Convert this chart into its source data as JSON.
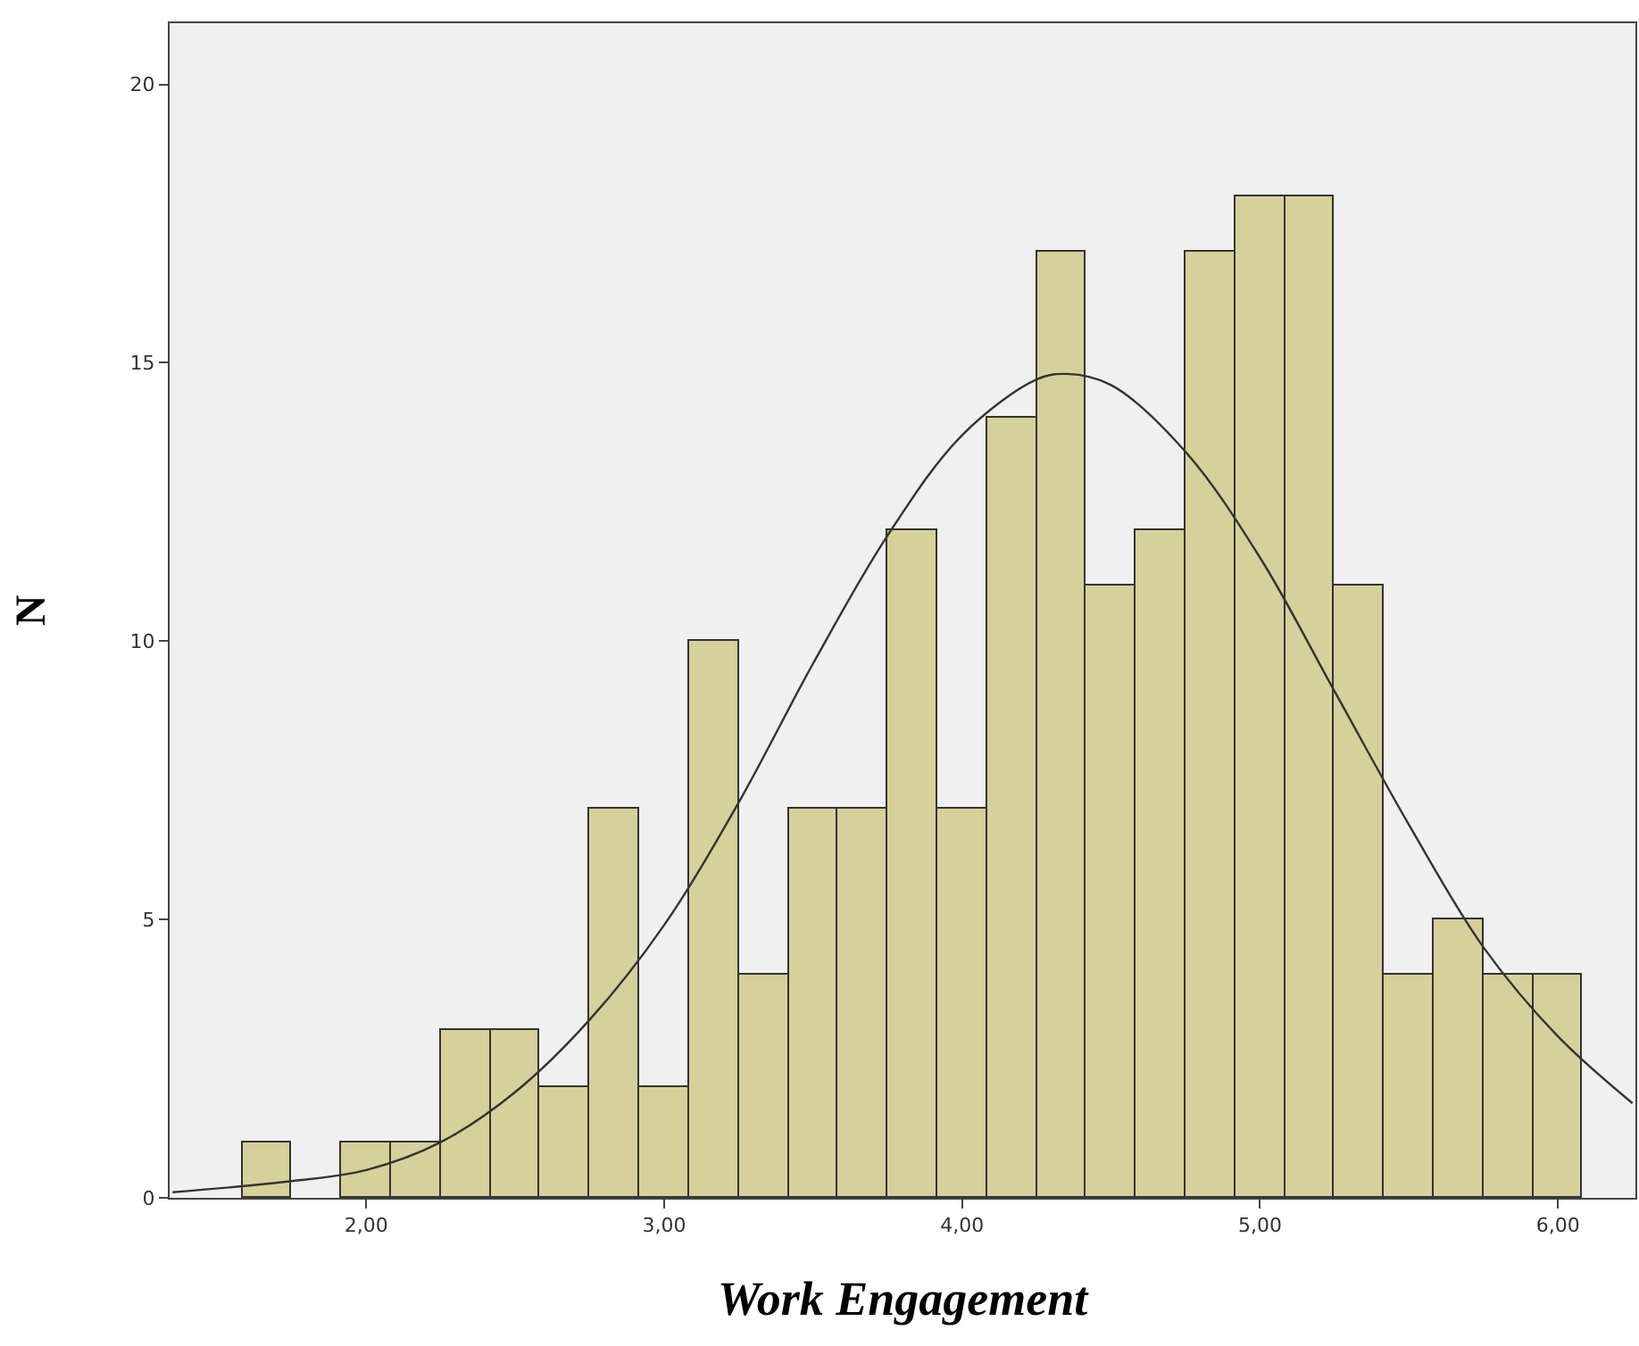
{
  "chart_data": {
    "type": "histogram",
    "xlabel": "Work Engagement",
    "ylabel": "N",
    "bins": [
      1.583,
      1.75,
      1.917,
      2.083,
      2.25,
      2.417,
      2.583,
      2.75,
      2.917,
      3.083,
      3.25,
      3.417,
      3.583,
      3.75,
      3.917,
      4.083,
      4.25,
      4.417,
      4.583,
      4.75,
      4.917,
      5.083,
      5.25,
      5.417,
      5.583,
      5.75,
      5.917,
      6.083
    ],
    "values": [
      1,
      0,
      1,
      1,
      3,
      3,
      2,
      7,
      2,
      10,
      4,
      7,
      7,
      12,
      7,
      14,
      17,
      11,
      12,
      17,
      18,
      18,
      11,
      4,
      5,
      4,
      4
    ],
    "color": "#d6d09a",
    "series": [
      {
        "type": "line",
        "color": "#333333",
        "x": [
          1.35,
          1.75,
          2.0,
          2.25,
          2.5,
          2.75,
          3.0,
          3.25,
          3.5,
          3.75,
          4.0,
          4.25,
          4.35,
          4.5,
          4.75,
          5.0,
          5.25,
          5.5,
          5.75,
          6.0,
          6.25
        ],
        "values": [
          0.1,
          0.3,
          0.5,
          1.0,
          1.9,
          3.2,
          4.9,
          7.1,
          9.6,
          11.9,
          13.7,
          14.7,
          14.8,
          14.6,
          13.4,
          11.5,
          9.1,
          6.7,
          4.5,
          2.9,
          1.7
        ]
      }
    ],
    "xlim": [
      1.34,
      6.26
    ],
    "xticks": [
      {
        "value": 2,
        "label": "2,00"
      },
      {
        "value": 3,
        "label": "3,00"
      },
      {
        "value": 4,
        "label": "4,00"
      },
      {
        "value": 5,
        "label": "5,00"
      },
      {
        "value": 6,
        "label": "6,00"
      }
    ],
    "ylim": [
      0,
      21.1
    ],
    "yticks": [
      0,
      5,
      10,
      15,
      20
    ],
    "grid": false,
    "marker": "none",
    "line_style": "solid"
  }
}
